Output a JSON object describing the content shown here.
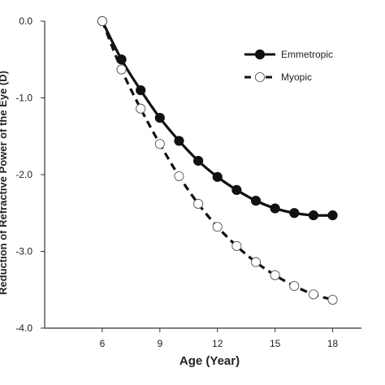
{
  "chart_data": {
    "type": "line",
    "title": "",
    "xlabel": "Age (Year)",
    "ylabel": "Reduction of Refractive Power of the Eye (D)",
    "xlim": [
      3,
      19.5
    ],
    "ylim": [
      -4.0,
      0.0
    ],
    "x_ticks": [
      6,
      9,
      12,
      15,
      18
    ],
    "x_tick_labels": [
      "6",
      "9",
      "12",
      "15",
      "18"
    ],
    "y_ticks": [
      0,
      -1,
      -2,
      -3,
      -4
    ],
    "y_tick_labels": [
      "0.0",
      "-1.0",
      "-2.0",
      "-3.0",
      "-4.0"
    ],
    "grid": false,
    "legend_position": "top-right",
    "x": [
      6,
      7,
      8,
      9,
      10,
      11,
      12,
      13,
      14,
      15,
      16,
      17,
      18
    ],
    "series": [
      {
        "name": "Emmetropic",
        "style": "solid",
        "marker": "filled-circle",
        "color": "#111111",
        "values": [
          0.0,
          -0.5,
          -0.9,
          -1.26,
          -1.56,
          -1.82,
          -2.03,
          -2.2,
          -2.34,
          -2.44,
          -2.5,
          -2.53,
          -2.53
        ]
      },
      {
        "name": "Myopic",
        "style": "dashed",
        "marker": "open-circle",
        "color": "#111111",
        "values": [
          0.0,
          -0.63,
          -1.14,
          -1.6,
          -2.02,
          -2.38,
          -2.68,
          -2.93,
          -3.14,
          -3.31,
          -3.45,
          -3.56,
          -3.63
        ]
      }
    ]
  }
}
